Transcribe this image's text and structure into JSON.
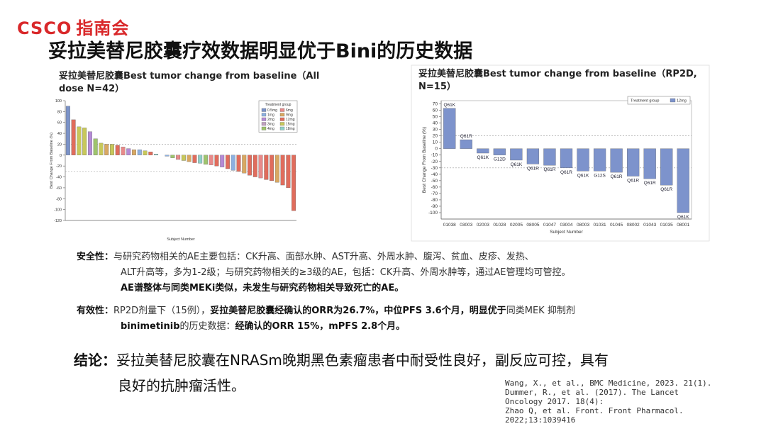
{
  "header": {
    "logo_en": "CSCO",
    "logo_cn": "指南会",
    "title": "妥拉美替尼胶囊疗效数据明显优于Bini的历史数据"
  },
  "chart_data": [
    {
      "type": "bar",
      "title": "妥拉美替尼胶囊Best tumor change from baseline（All dose N=42）",
      "y_label": "Best Change From Baseline (%)",
      "x_label": "Subject Number",
      "categories": [
        null,
        null,
        null,
        null,
        null,
        null,
        null,
        null,
        null,
        null,
        null,
        null,
        null,
        null,
        null,
        null,
        null,
        null,
        null,
        null,
        null,
        null,
        null,
        null,
        null,
        null,
        null,
        null,
        null,
        null,
        null,
        null,
        null,
        null,
        null,
        null,
        null,
        null,
        null,
        null,
        null,
        null
      ],
      "values": [
        90,
        65,
        52,
        50,
        43,
        30,
        22,
        20,
        20,
        18,
        15,
        12,
        10,
        10,
        8,
        6,
        2,
        0,
        -2,
        -5,
        -8,
        -10,
        -12,
        -14,
        -15,
        -17,
        -18,
        -20,
        -22,
        -25,
        -28,
        -30,
        -33,
        -37,
        -40,
        -42,
        -45,
        -47,
        -50,
        -55,
        -60,
        -102
      ],
      "bar_colors": [
        "#7b93c9",
        "#e06c5c",
        "#c8c85a",
        "#c8c85a",
        "#b58ad6",
        "#9ec46d",
        "#c8c85a",
        "#d9a862",
        "#c8c85a",
        "#e06c5c",
        "#e88a8a",
        "#b58ad6",
        "#d9a862",
        "#8db0e0",
        "#c8c85a",
        "#e06c5c",
        "#8fd0c8",
        "#e06c5c",
        "#8db0e0",
        "#9ec46d",
        "#e88a8a",
        "#c8c85a",
        "#d9a862",
        "#e06c5c",
        "#8fd0c8",
        "#9ec46d",
        "#e88a8a",
        "#e06c5c",
        "#b58ad6",
        "#e06c5c",
        "#8db0e0",
        "#e06c5c",
        "#d9a862",
        "#e06c5c",
        "#e06c5c",
        "#e88a8a",
        "#e06c5c",
        "#e06c5c",
        "#d9a862",
        "#e06c5c",
        "#e06c5c",
        "#e06c5c"
      ],
      "legend": {
        "title": "Treatment group",
        "items": [
          {
            "name": "0.5mg",
            "color": "#7b93c9"
          },
          {
            "name": "1mg",
            "color": "#8db0e0"
          },
          {
            "name": "2mg",
            "color": "#b58ad6"
          },
          {
            "name": "3mg",
            "color": "#c0a0c0"
          },
          {
            "name": "4mg",
            "color": "#9ec46d"
          },
          {
            "name": "6mg",
            "color": "#e88a8a"
          },
          {
            "name": "9mg",
            "color": "#d9a862"
          },
          {
            "name": "12mg",
            "color": "#e06c5c"
          },
          {
            "name": "15mg",
            "color": "#c8c85a"
          },
          {
            "name": "18mg",
            "color": "#8fd0c8"
          }
        ]
      },
      "ylim": [
        -120,
        100
      ],
      "yticks": [
        -120,
        -100,
        -80,
        -60,
        -40,
        -20,
        0,
        20,
        40,
        60,
        80,
        100
      ],
      "reference_lines": [
        20,
        -30
      ]
    },
    {
      "type": "bar",
      "title": "妥拉美替尼胶囊Best tumor change from baseline（RP2D, N=15）",
      "y_label": "Best Change From Baseline (%)",
      "x_label": "Subject Number",
      "categories": [
        "01038",
        "03003",
        "02003",
        "01028",
        "02005",
        "08005",
        "01047",
        "03004",
        "08003",
        "01031",
        "01045",
        "08002",
        "01043",
        "01035",
        "08001"
      ],
      "values": [
        63,
        14,
        -7,
        -10,
        -18,
        -24,
        -26,
        -30,
        -35,
        -35,
        -37,
        -43,
        -47,
        -57,
        -100
      ],
      "annotations": [
        "Q61K",
        "Q61R",
        "Q61K",
        "G12D",
        "Q61K",
        "Q61R",
        "Q61R",
        "Q61R",
        "Q61K",
        "G12S",
        "Q61R",
        "Q61R",
        "Q61R",
        "Q61R",
        "Q61K"
      ],
      "color": "#7d93cc",
      "legend": {
        "title": "Treatment group",
        "items": [
          {
            "name": "12mg",
            "color": "#7d93cc"
          }
        ]
      },
      "ylim": [
        -110,
        75
      ],
      "yticks": [
        -100,
        -90,
        -80,
        -70,
        -60,
        -50,
        -40,
        -30,
        -20,
        -10,
        0,
        10,
        20,
        30,
        40,
        50,
        60,
        70
      ],
      "reference_lines": [
        20,
        -30
      ]
    }
  ],
  "safety": {
    "label": "安全性：",
    "line1": "与研究药物相关的AE主要包括：CK升高、面部水肿、AST升高、外周水肿、腹泻、贫血、皮疹、发热、",
    "line2": "ALT升高等，多为1-2级；与研究药物相关的≥3级的AE，包括：CK升高、外周水肿等，通过AE管理均可管控。",
    "line3": "AE谱整体与同类MEKi类似，未发生与研究药物相关导致死亡的AE。"
  },
  "efficacy": {
    "label": "有效性：",
    "p1": "RP2D剂量下（15例），",
    "p2": "妥拉美替尼胶囊经确认的ORR为26.7%，中位PFS 3.6个月，",
    "p3": "明显优于",
    "p4": "同类MEK 抑制剂",
    "p5": "binimetinib",
    "p6": "的历史数据：",
    "p7": "经确认的ORR 15%，mPFS  2.8个月。"
  },
  "conclusion": {
    "label": "结论：",
    "line1": "妥拉美替尼胶囊在NRASm晚期黑色素瘤患者中耐受性良好，副反应可控，具有",
    "line2": "良好的抗肿瘤活性。"
  },
  "references": [
    "Wang, X., et al., BMC Medicine, 2023. 21(1).",
    "Dummer, R., et al. (2017). The Lancet Oncology 2017. 18(4):",
    "Zhao Q, et al. Front. Front Pharmacol. 2022;13:1039416"
  ]
}
